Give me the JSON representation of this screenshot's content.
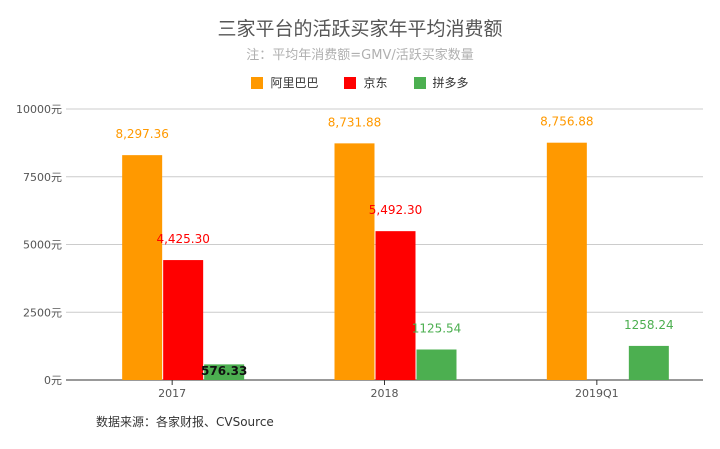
{
  "chart_data": {
    "type": "bar",
    "title": "三家平台的活跃买家年平均消费额",
    "subtitle": "注：平均年消费额=GMV/活跃买家数量",
    "categories": [
      "2017",
      "2018",
      "2019Q1"
    ],
    "series": [
      {
        "name": "阿里巴巴",
        "color": "#ff9900",
        "values": [
          8297.36,
          8731.88,
          8756.88
        ],
        "labels": [
          "8,297.36",
          "8,731.88",
          "8,756.88"
        ]
      },
      {
        "name": "京东",
        "color": "#ff0000",
        "values": [
          4425.3,
          5492.3,
          null
        ],
        "labels": [
          "4,425.30",
          "5,492.30",
          null
        ]
      },
      {
        "name": "拼多多",
        "color": "#4caf50",
        "values": [
          576.33,
          1125.54,
          1258.24
        ],
        "labels": [
          "576.33",
          "1125.54",
          "1258.24"
        ]
      }
    ],
    "yticks": [
      0,
      2500,
      5000,
      7500,
      10000
    ],
    "ytick_labels": [
      "0元",
      "2500元",
      "5000元",
      "7500元",
      "10000元"
    ],
    "ylim": [
      0,
      10000
    ],
    "legend_position": "top-center",
    "source": "数据来源：各家财报、CVSource"
  }
}
